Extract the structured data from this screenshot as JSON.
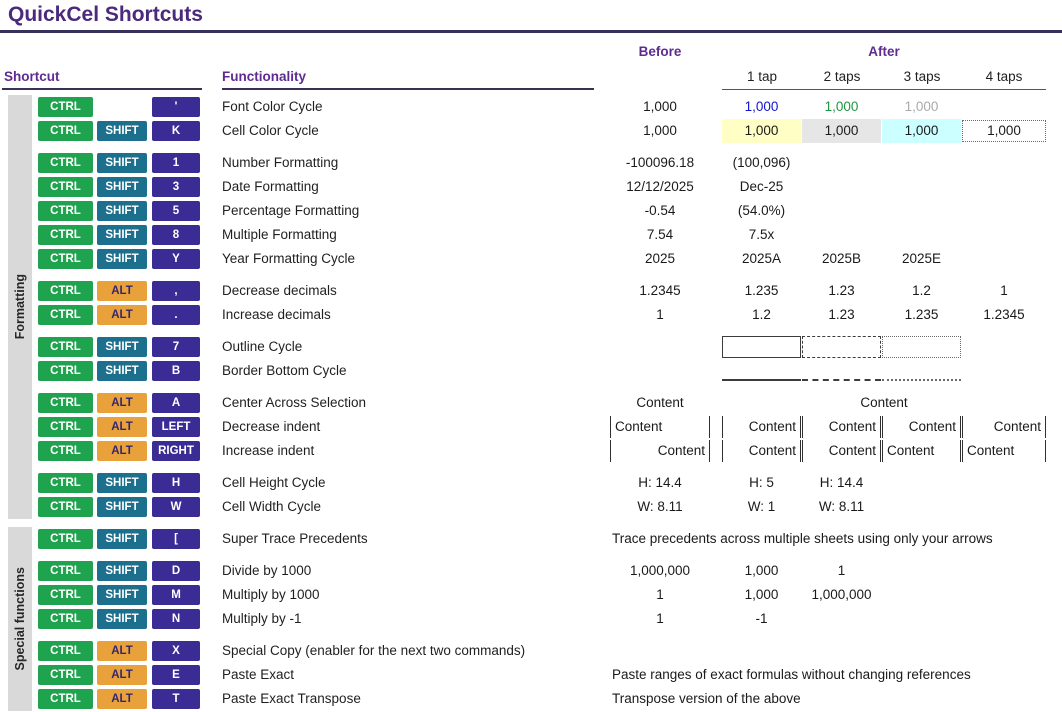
{
  "title": "QuickCel Shortcuts",
  "headers": {
    "shortcut": "Shortcut",
    "functionality": "Functionality",
    "before": "Before",
    "after": "After",
    "taps": [
      "1 tap",
      "2 taps",
      "3 taps",
      "4 taps"
    ]
  },
  "sections": [
    {
      "label": "Formatting"
    },
    {
      "label": "Special functions"
    }
  ],
  "colors": {
    "title": "#4B2A7E",
    "column_header": "#5E2C91",
    "key_ctrl": "#1FA34E",
    "key_shift": "#1D6F8E",
    "key_alt": "#E9A23B",
    "key_symbol": "#3A2C94",
    "font_color_cycle": [
      "#1414CE",
      "#1E9641",
      "#A9A9A9"
    ],
    "cell_color_cycle": [
      "#FFFFC5",
      "#E7E6E6",
      "#CCFFFF"
    ],
    "sidebar_bg": "#D9D9D9"
  },
  "groups": [
    {
      "rows": [
        {
          "keys": [
            "CTRL",
            null,
            "'"
          ],
          "func": "Font Color Cycle",
          "before": {
            "t": "1,000"
          },
          "after": [
            {
              "t": "1,000",
              "color": "#1414CE"
            },
            {
              "t": "1,000",
              "color": "#1E9641"
            },
            {
              "t": "1,000",
              "color": "#A9A9A9"
            },
            null
          ]
        },
        {
          "keys": [
            "CTRL",
            "SHIFT",
            "K"
          ],
          "func": "Cell Color Cycle",
          "before": {
            "t": "1,000"
          },
          "after": [
            {
              "t": "1,000",
              "bg": "#FFFFC5"
            },
            {
              "t": "1,000",
              "bg": "#E7E6E6"
            },
            {
              "t": "1,000",
              "bg": "#CCFFFF"
            },
            {
              "t": "1,000",
              "outline": "dotted"
            }
          ]
        }
      ]
    },
    {
      "rows": [
        {
          "keys": [
            "CTRL",
            "SHIFT",
            "1"
          ],
          "func": "Number Formatting",
          "before": {
            "t": "-100096.18"
          },
          "after": [
            {
              "t": "(100,096)"
            },
            null,
            null,
            null
          ]
        },
        {
          "keys": [
            "CTRL",
            "SHIFT",
            "3"
          ],
          "func": "Date Formatting",
          "before": {
            "t": "12/12/2025"
          },
          "after": [
            {
              "t": "Dec-25"
            },
            null,
            null,
            null
          ]
        },
        {
          "keys": [
            "CTRL",
            "SHIFT",
            "5"
          ],
          "func": "Percentage Formatting",
          "before": {
            "t": "-0.54"
          },
          "after": [
            {
              "t": "(54.0%)"
            },
            null,
            null,
            null
          ]
        },
        {
          "keys": [
            "CTRL",
            "SHIFT",
            "8"
          ],
          "func": "Multiple Formatting",
          "before": {
            "t": "7.54"
          },
          "after": [
            {
              "t": "7.5x"
            },
            null,
            null,
            null
          ]
        },
        {
          "keys": [
            "CTRL",
            "SHIFT",
            "Y"
          ],
          "func": "Year Formatting Cycle",
          "before": {
            "t": "2025"
          },
          "after": [
            {
              "t": "2025A"
            },
            {
              "t": "2025B"
            },
            {
              "t": "2025E"
            },
            null
          ]
        }
      ]
    },
    {
      "rows": [
        {
          "keys": [
            "CTRL",
            "ALT",
            ","
          ],
          "func": "Decrease decimals",
          "before": {
            "t": "1.2345"
          },
          "after": [
            {
              "t": "1.235"
            },
            {
              "t": "1.23"
            },
            {
              "t": "1.2"
            },
            {
              "t": "1"
            }
          ]
        },
        {
          "keys": [
            "CTRL",
            "ALT",
            "."
          ],
          "func": "Increase decimals",
          "before": {
            "t": "1"
          },
          "after": [
            {
              "t": "1.2"
            },
            {
              "t": "1.23"
            },
            {
              "t": "1.235"
            },
            {
              "t": "1.2345"
            }
          ]
        }
      ]
    },
    {
      "rows": [
        {
          "keys": [
            "CTRL",
            "SHIFT",
            "7"
          ],
          "func": "Outline Cycle",
          "before": null,
          "after": [
            {
              "outline": "solid"
            },
            {
              "outline": "dashed"
            },
            {
              "outline": "dotted"
            },
            null
          ]
        },
        {
          "keys": [
            "CTRL",
            "SHIFT",
            "B"
          ],
          "func": "Border Bottom Cycle",
          "before": null,
          "after": [
            {
              "bottom": "solid"
            },
            {
              "bottom": "dashed"
            },
            {
              "bottom": "dotted"
            },
            null
          ]
        }
      ]
    },
    {
      "rows": [
        {
          "keys": [
            "CTRL",
            "ALT",
            "A"
          ],
          "func": "Center Across Selection",
          "before": {
            "t": "Content"
          },
          "afterSpan": {
            "t": "Content",
            "align": "center"
          }
        },
        {
          "keys": [
            "CTRL",
            "ALT",
            "LEFT"
          ],
          "func": "Decrease indent",
          "before": {
            "t": "Content",
            "align": "left",
            "sides": true
          },
          "after": [
            {
              "t": "Content",
              "align": "right",
              "sides": true
            },
            {
              "t": "Content",
              "align": "right",
              "sides": true
            },
            {
              "t": "Content",
              "align": "right",
              "sides": true
            },
            {
              "t": "Content",
              "align": "right",
              "sides": true
            }
          ]
        },
        {
          "keys": [
            "CTRL",
            "ALT",
            "RIGHT"
          ],
          "func": "Increase indent",
          "before": {
            "t": "Content",
            "align": "right",
            "sides": true
          },
          "after": [
            {
              "t": "Content",
              "align": "right",
              "sides": true
            },
            {
              "t": "Content",
              "align": "right",
              "sides": true
            },
            {
              "t": "Content",
              "align": "left",
              "sides": true
            },
            {
              "t": "Content",
              "align": "left",
              "sides": true
            }
          ]
        }
      ]
    },
    {
      "rows": [
        {
          "keys": [
            "CTRL",
            "SHIFT",
            "H"
          ],
          "func": "Cell Height Cycle",
          "before": {
            "t": "H: 14.4"
          },
          "after": [
            {
              "t": "H: 5"
            },
            {
              "t": "H: 14.4"
            },
            null,
            null
          ]
        },
        {
          "keys": [
            "CTRL",
            "SHIFT",
            "W"
          ],
          "func": "Cell Width Cycle",
          "before": {
            "t": "W: 8.11"
          },
          "after": [
            {
              "t": "W: 1"
            },
            {
              "t": "W: 8.11"
            },
            null,
            null
          ]
        }
      ]
    },
    {
      "rows": [
        {
          "keys": [
            "CTRL",
            "SHIFT",
            "["
          ],
          "func": "Super Trace Precedents",
          "note": "Trace precedents across multiple sheets using only your arrows"
        }
      ]
    },
    {
      "rows": [
        {
          "keys": [
            "CTRL",
            "SHIFT",
            "D"
          ],
          "func": "Divide by 1000",
          "before": {
            "t": "1,000,000"
          },
          "after": [
            {
              "t": "1,000"
            },
            {
              "t": "1"
            },
            null,
            null
          ]
        },
        {
          "keys": [
            "CTRL",
            "SHIFT",
            "M"
          ],
          "func": "Multiply by 1000",
          "before": {
            "t": "1"
          },
          "after": [
            {
              "t": "1,000"
            },
            {
              "t": "1,000,000"
            },
            null,
            null
          ]
        },
        {
          "keys": [
            "CTRL",
            "SHIFT",
            "N"
          ],
          "func": "Multiply by -1",
          "before": {
            "t": "1"
          },
          "after": [
            {
              "t": "-1"
            },
            null,
            null,
            null
          ]
        }
      ]
    },
    {
      "rows": [
        {
          "keys": [
            "CTRL",
            "ALT",
            "X"
          ],
          "func": "Special Copy (enabler for the next two commands)"
        },
        {
          "keys": [
            "CTRL",
            "ALT",
            "E"
          ],
          "func": "Paste Exact",
          "note": "Paste ranges of exact formulas without changing references"
        },
        {
          "keys": [
            "CTRL",
            "ALT",
            "T"
          ],
          "func": "Paste Exact Transpose",
          "note": "Transpose version of the above"
        }
      ]
    }
  ]
}
